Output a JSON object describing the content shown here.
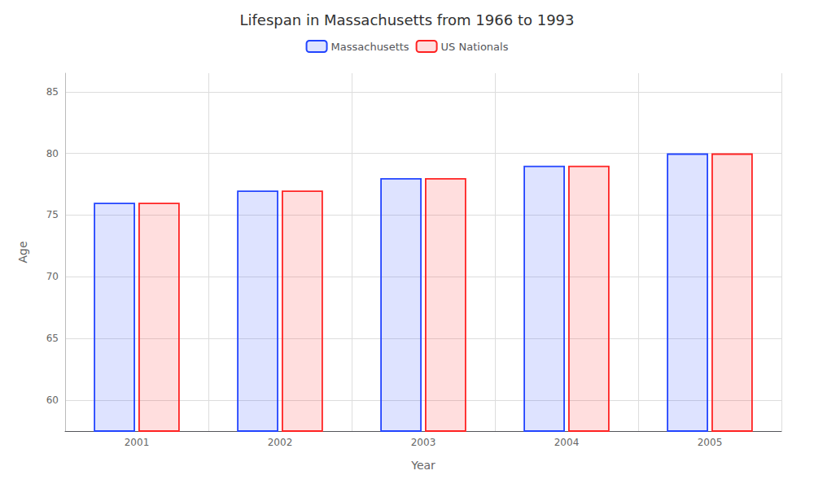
{
  "chart_data": {
    "type": "bar",
    "title": "Lifespan in Massachusetts from 1966 to 1993",
    "xlabel": "Year",
    "ylabel": "Age",
    "categories": [
      "2001",
      "2002",
      "2003",
      "2004",
      "2005"
    ],
    "series": [
      {
        "name": "Massachusetts",
        "color": "#2244ff",
        "values": [
          76,
          77,
          78,
          79,
          80
        ]
      },
      {
        "name": "US Nationals",
        "color": "#ff2222",
        "values": [
          76,
          77,
          78,
          79,
          80
        ]
      }
    ],
    "ylim": [
      57.5,
      86.5
    ],
    "yticks": [
      60,
      65,
      70,
      75,
      80,
      85
    ],
    "grid": true,
    "legend": "top"
  }
}
